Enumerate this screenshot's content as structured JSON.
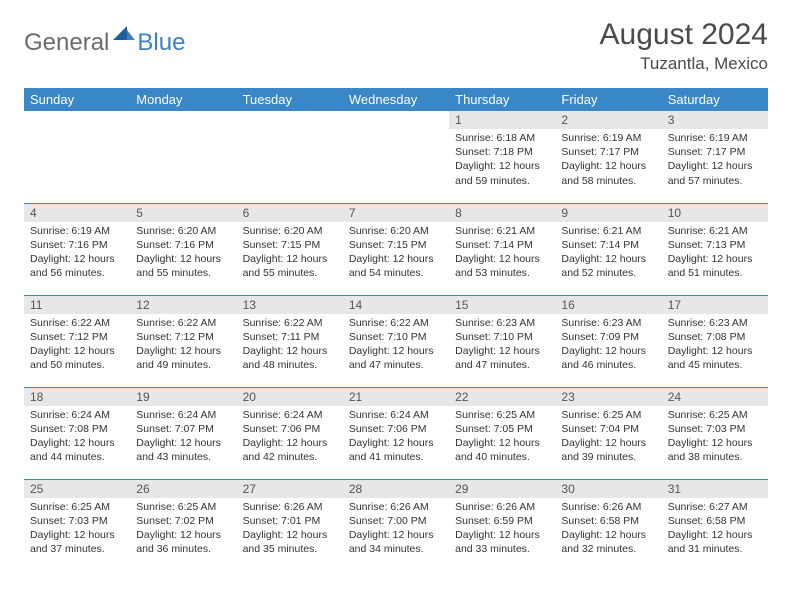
{
  "brand": {
    "part1": "General",
    "part2": "Blue"
  },
  "title": "August 2024",
  "location": "Tuzantla, Mexico",
  "colors": {
    "header_bg": "#3a87c8",
    "header_text": "#ffffff",
    "daynum_bg": "#e7e7e7",
    "border": "#3a87c8",
    "logo_gray": "#6b6b6b",
    "logo_blue": "#3b82c4"
  },
  "weekdays": [
    "Sunday",
    "Monday",
    "Tuesday",
    "Wednesday",
    "Thursday",
    "Friday",
    "Saturday"
  ],
  "weeks": [
    [
      {
        "n": "",
        "sr": "",
        "ss": "",
        "dl": ""
      },
      {
        "n": "",
        "sr": "",
        "ss": "",
        "dl": ""
      },
      {
        "n": "",
        "sr": "",
        "ss": "",
        "dl": ""
      },
      {
        "n": "",
        "sr": "",
        "ss": "",
        "dl": ""
      },
      {
        "n": "1",
        "sr": "Sunrise: 6:18 AM",
        "ss": "Sunset: 7:18 PM",
        "dl": "Daylight: 12 hours and 59 minutes."
      },
      {
        "n": "2",
        "sr": "Sunrise: 6:19 AM",
        "ss": "Sunset: 7:17 PM",
        "dl": "Daylight: 12 hours and 58 minutes."
      },
      {
        "n": "3",
        "sr": "Sunrise: 6:19 AM",
        "ss": "Sunset: 7:17 PM",
        "dl": "Daylight: 12 hours and 57 minutes."
      }
    ],
    [
      {
        "n": "4",
        "sr": "Sunrise: 6:19 AM",
        "ss": "Sunset: 7:16 PM",
        "dl": "Daylight: 12 hours and 56 minutes."
      },
      {
        "n": "5",
        "sr": "Sunrise: 6:20 AM",
        "ss": "Sunset: 7:16 PM",
        "dl": "Daylight: 12 hours and 55 minutes."
      },
      {
        "n": "6",
        "sr": "Sunrise: 6:20 AM",
        "ss": "Sunset: 7:15 PM",
        "dl": "Daylight: 12 hours and 55 minutes."
      },
      {
        "n": "7",
        "sr": "Sunrise: 6:20 AM",
        "ss": "Sunset: 7:15 PM",
        "dl": "Daylight: 12 hours and 54 minutes."
      },
      {
        "n": "8",
        "sr": "Sunrise: 6:21 AM",
        "ss": "Sunset: 7:14 PM",
        "dl": "Daylight: 12 hours and 53 minutes."
      },
      {
        "n": "9",
        "sr": "Sunrise: 6:21 AM",
        "ss": "Sunset: 7:14 PM",
        "dl": "Daylight: 12 hours and 52 minutes."
      },
      {
        "n": "10",
        "sr": "Sunrise: 6:21 AM",
        "ss": "Sunset: 7:13 PM",
        "dl": "Daylight: 12 hours and 51 minutes."
      }
    ],
    [
      {
        "n": "11",
        "sr": "Sunrise: 6:22 AM",
        "ss": "Sunset: 7:12 PM",
        "dl": "Daylight: 12 hours and 50 minutes."
      },
      {
        "n": "12",
        "sr": "Sunrise: 6:22 AM",
        "ss": "Sunset: 7:12 PM",
        "dl": "Daylight: 12 hours and 49 minutes."
      },
      {
        "n": "13",
        "sr": "Sunrise: 6:22 AM",
        "ss": "Sunset: 7:11 PM",
        "dl": "Daylight: 12 hours and 48 minutes."
      },
      {
        "n": "14",
        "sr": "Sunrise: 6:22 AM",
        "ss": "Sunset: 7:10 PM",
        "dl": "Daylight: 12 hours and 47 minutes."
      },
      {
        "n": "15",
        "sr": "Sunrise: 6:23 AM",
        "ss": "Sunset: 7:10 PM",
        "dl": "Daylight: 12 hours and 47 minutes."
      },
      {
        "n": "16",
        "sr": "Sunrise: 6:23 AM",
        "ss": "Sunset: 7:09 PM",
        "dl": "Daylight: 12 hours and 46 minutes."
      },
      {
        "n": "17",
        "sr": "Sunrise: 6:23 AM",
        "ss": "Sunset: 7:08 PM",
        "dl": "Daylight: 12 hours and 45 minutes."
      }
    ],
    [
      {
        "n": "18",
        "sr": "Sunrise: 6:24 AM",
        "ss": "Sunset: 7:08 PM",
        "dl": "Daylight: 12 hours and 44 minutes."
      },
      {
        "n": "19",
        "sr": "Sunrise: 6:24 AM",
        "ss": "Sunset: 7:07 PM",
        "dl": "Daylight: 12 hours and 43 minutes."
      },
      {
        "n": "20",
        "sr": "Sunrise: 6:24 AM",
        "ss": "Sunset: 7:06 PM",
        "dl": "Daylight: 12 hours and 42 minutes."
      },
      {
        "n": "21",
        "sr": "Sunrise: 6:24 AM",
        "ss": "Sunset: 7:06 PM",
        "dl": "Daylight: 12 hours and 41 minutes."
      },
      {
        "n": "22",
        "sr": "Sunrise: 6:25 AM",
        "ss": "Sunset: 7:05 PM",
        "dl": "Daylight: 12 hours and 40 minutes."
      },
      {
        "n": "23",
        "sr": "Sunrise: 6:25 AM",
        "ss": "Sunset: 7:04 PM",
        "dl": "Daylight: 12 hours and 39 minutes."
      },
      {
        "n": "24",
        "sr": "Sunrise: 6:25 AM",
        "ss": "Sunset: 7:03 PM",
        "dl": "Daylight: 12 hours and 38 minutes."
      }
    ],
    [
      {
        "n": "25",
        "sr": "Sunrise: 6:25 AM",
        "ss": "Sunset: 7:03 PM",
        "dl": "Daylight: 12 hours and 37 minutes."
      },
      {
        "n": "26",
        "sr": "Sunrise: 6:25 AM",
        "ss": "Sunset: 7:02 PM",
        "dl": "Daylight: 12 hours and 36 minutes."
      },
      {
        "n": "27",
        "sr": "Sunrise: 6:26 AM",
        "ss": "Sunset: 7:01 PM",
        "dl": "Daylight: 12 hours and 35 minutes."
      },
      {
        "n": "28",
        "sr": "Sunrise: 6:26 AM",
        "ss": "Sunset: 7:00 PM",
        "dl": "Daylight: 12 hours and 34 minutes."
      },
      {
        "n": "29",
        "sr": "Sunrise: 6:26 AM",
        "ss": "Sunset: 6:59 PM",
        "dl": "Daylight: 12 hours and 33 minutes."
      },
      {
        "n": "30",
        "sr": "Sunrise: 6:26 AM",
        "ss": "Sunset: 6:58 PM",
        "dl": "Daylight: 12 hours and 32 minutes."
      },
      {
        "n": "31",
        "sr": "Sunrise: 6:27 AM",
        "ss": "Sunset: 6:58 PM",
        "dl": "Daylight: 12 hours and 31 minutes."
      }
    ]
  ]
}
